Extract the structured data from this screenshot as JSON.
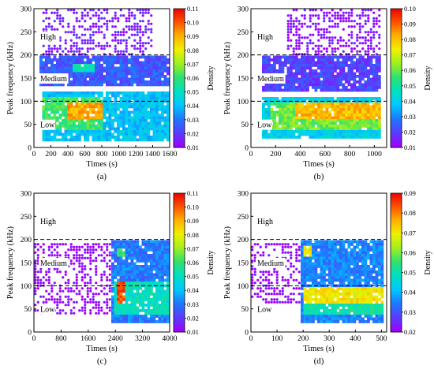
{
  "colorscale": [
    "#a000ff",
    "#5a3cff",
    "#1e78ff",
    "#00c8ff",
    "#00e0c0",
    "#30e070",
    "#a0f020",
    "#f0f000",
    "#ffb000",
    "#ff5000",
    "#e80000"
  ],
  "chart_data": [
    {
      "type": "heatmap",
      "panel_label": "(a)",
      "xlabel": "Times (s)",
      "ylabel": "Peak frequency (kHz)",
      "colorbar_label": "Density",
      "xlim": [
        0,
        1600
      ],
      "ylim": [
        0,
        300
      ],
      "x_ticks": [
        0,
        200,
        400,
        600,
        800,
        1000,
        1200,
        1400,
        1600
      ],
      "y_ticks": [
        0,
        50,
        100,
        150,
        200,
        250,
        300
      ],
      "colorbar_range": [
        0.01,
        0.11
      ],
      "colorbar_ticks": [
        "0.01",
        "0.02",
        "0.03",
        "0.04",
        "0.05",
        "0.06",
        "0.07",
        "0.08",
        "0.09",
        "0.10",
        "0.11"
      ],
      "dashed_lines_y": [
        100,
        200
      ],
      "band_labels": [
        {
          "text": "High",
          "y": 240
        },
        {
          "text": "Medium",
          "y": 150
        },
        {
          "text": "Low",
          "y": 50
        }
      ],
      "density_regions": [
        {
          "x": [
            100,
            1600
          ],
          "y": [
            15,
            120
          ],
          "level": 0.04
        },
        {
          "x": [
            100,
            800
          ],
          "y": [
            40,
            110
          ],
          "level": 0.06
        },
        {
          "x": [
            400,
            800
          ],
          "y": [
            60,
            95
          ],
          "level": 0.09
        },
        {
          "x": [
            50,
            1600
          ],
          "y": [
            130,
            200
          ],
          "level": 0.025
        },
        {
          "x": [
            450,
            700
          ],
          "y": [
            160,
            180
          ],
          "level": 0.05
        },
        {
          "x": [
            100,
            1400
          ],
          "y": [
            200,
            300
          ],
          "level": 0.015
        }
      ]
    },
    {
      "type": "heatmap",
      "panel_label": "(b)",
      "xlabel": "Times (s)",
      "ylabel": "Peak frequency (kHz)",
      "colorbar_label": "Density",
      "xlim": [
        0,
        1100
      ],
      "ylim": [
        0,
        300
      ],
      "x_ticks": [
        0,
        200,
        400,
        600,
        800,
        1000
      ],
      "y_ticks": [
        0,
        50,
        100,
        150,
        200,
        250,
        300
      ],
      "colorbar_range": [
        0.01,
        0.1
      ],
      "colorbar_ticks": [
        "0.01",
        "0.02",
        "0.03",
        "0.04",
        "0.05",
        "0.06",
        "0.07",
        "0.08",
        "0.09",
        "0.10"
      ],
      "dashed_lines_y": [
        100,
        200
      ],
      "band_labels": [
        {
          "text": "High",
          "y": 240
        },
        {
          "text": "Medium",
          "y": 150
        },
        {
          "text": "Low",
          "y": 50
        }
      ],
      "density_regions": [
        {
          "x": [
            100,
            1060
          ],
          "y": [
            20,
            110
          ],
          "level": 0.04
        },
        {
          "x": [
            150,
            1060
          ],
          "y": [
            40,
            100
          ],
          "level": 0.06
        },
        {
          "x": [
            350,
            1060
          ],
          "y": [
            60,
            95
          ],
          "level": 0.08
        },
        {
          "x": [
            100,
            1060
          ],
          "y": [
            120,
            200
          ],
          "level": 0.02
        },
        {
          "x": [
            300,
            1060
          ],
          "y": [
            200,
            300
          ],
          "level": 0.012
        }
      ]
    },
    {
      "type": "heatmap",
      "panel_label": "(c)",
      "xlabel": "Times (s)",
      "ylabel": "Peak frequency (kHz)",
      "colorbar_label": "Density",
      "xlim": [
        0,
        4000
      ],
      "ylim": [
        0,
        300
      ],
      "x_ticks": [
        0,
        800,
        1600,
        2400,
        3200,
        4000
      ],
      "y_ticks": [
        0,
        50,
        100,
        150,
        200,
        250,
        300
      ],
      "colorbar_range": [
        0.01,
        0.11
      ],
      "colorbar_ticks": [
        "0.01",
        "0.02",
        "0.03",
        "0.04",
        "0.05",
        "0.06",
        "0.07",
        "0.08",
        "0.09",
        "0.10",
        "0.11"
      ],
      "dashed_lines_y": [
        100,
        200
      ],
      "band_labels": [
        {
          "text": "High",
          "y": 240
        },
        {
          "text": "Medium",
          "y": 150
        },
        {
          "text": "Low",
          "y": 50
        }
      ],
      "density_regions": [
        {
          "x": [
            2300,
            4000
          ],
          "y": [
            20,
            200
          ],
          "level": 0.03
        },
        {
          "x": [
            2400,
            4000
          ],
          "y": [
            40,
            110
          ],
          "level": 0.05
        },
        {
          "x": [
            2450,
            2700
          ],
          "y": [
            60,
            110
          ],
          "level": 0.1
        },
        {
          "x": [
            2450,
            2700
          ],
          "y": [
            160,
            180
          ],
          "level": 0.06
        },
        {
          "x": [
            0,
            2300
          ],
          "y": [
            40,
            190
          ],
          "level": 0.01
        }
      ]
    },
    {
      "type": "heatmap",
      "panel_label": "(d)",
      "xlabel": "Times (s)",
      "ylabel": "Peak frequency (kHz)",
      "colorbar_label": "Density",
      "xlim": [
        0,
        520
      ],
      "ylim": [
        0,
        300
      ],
      "x_ticks": [
        0,
        100,
        200,
        300,
        400,
        500
      ],
      "y_ticks": [
        0,
        50,
        100,
        150,
        200,
        250,
        300
      ],
      "colorbar_range": [
        0.02,
        0.09
      ],
      "colorbar_ticks": [
        "0.02",
        "0.03",
        "0.04",
        "0.05",
        "0.06",
        "0.07",
        "0.08",
        "0.09"
      ],
      "dashed_lines_y": [
        100,
        200
      ],
      "band_labels": [
        {
          "text": "High",
          "y": 240
        },
        {
          "text": "Medium",
          "y": 150
        },
        {
          "text": "Low",
          "y": 50
        }
      ],
      "density_regions": [
        {
          "x": [
            190,
            510
          ],
          "y": [
            20,
            200
          ],
          "level": 0.035
        },
        {
          "x": [
            200,
            510
          ],
          "y": [
            40,
            100
          ],
          "level": 0.05
        },
        {
          "x": [
            200,
            510
          ],
          "y": [
            60,
            95
          ],
          "level": 0.07
        },
        {
          "x": [
            200,
            230
          ],
          "y": [
            160,
            185
          ],
          "level": 0.07
        },
        {
          "x": [
            0,
            190
          ],
          "y": [
            60,
            190
          ],
          "level": 0.02
        }
      ]
    }
  ]
}
